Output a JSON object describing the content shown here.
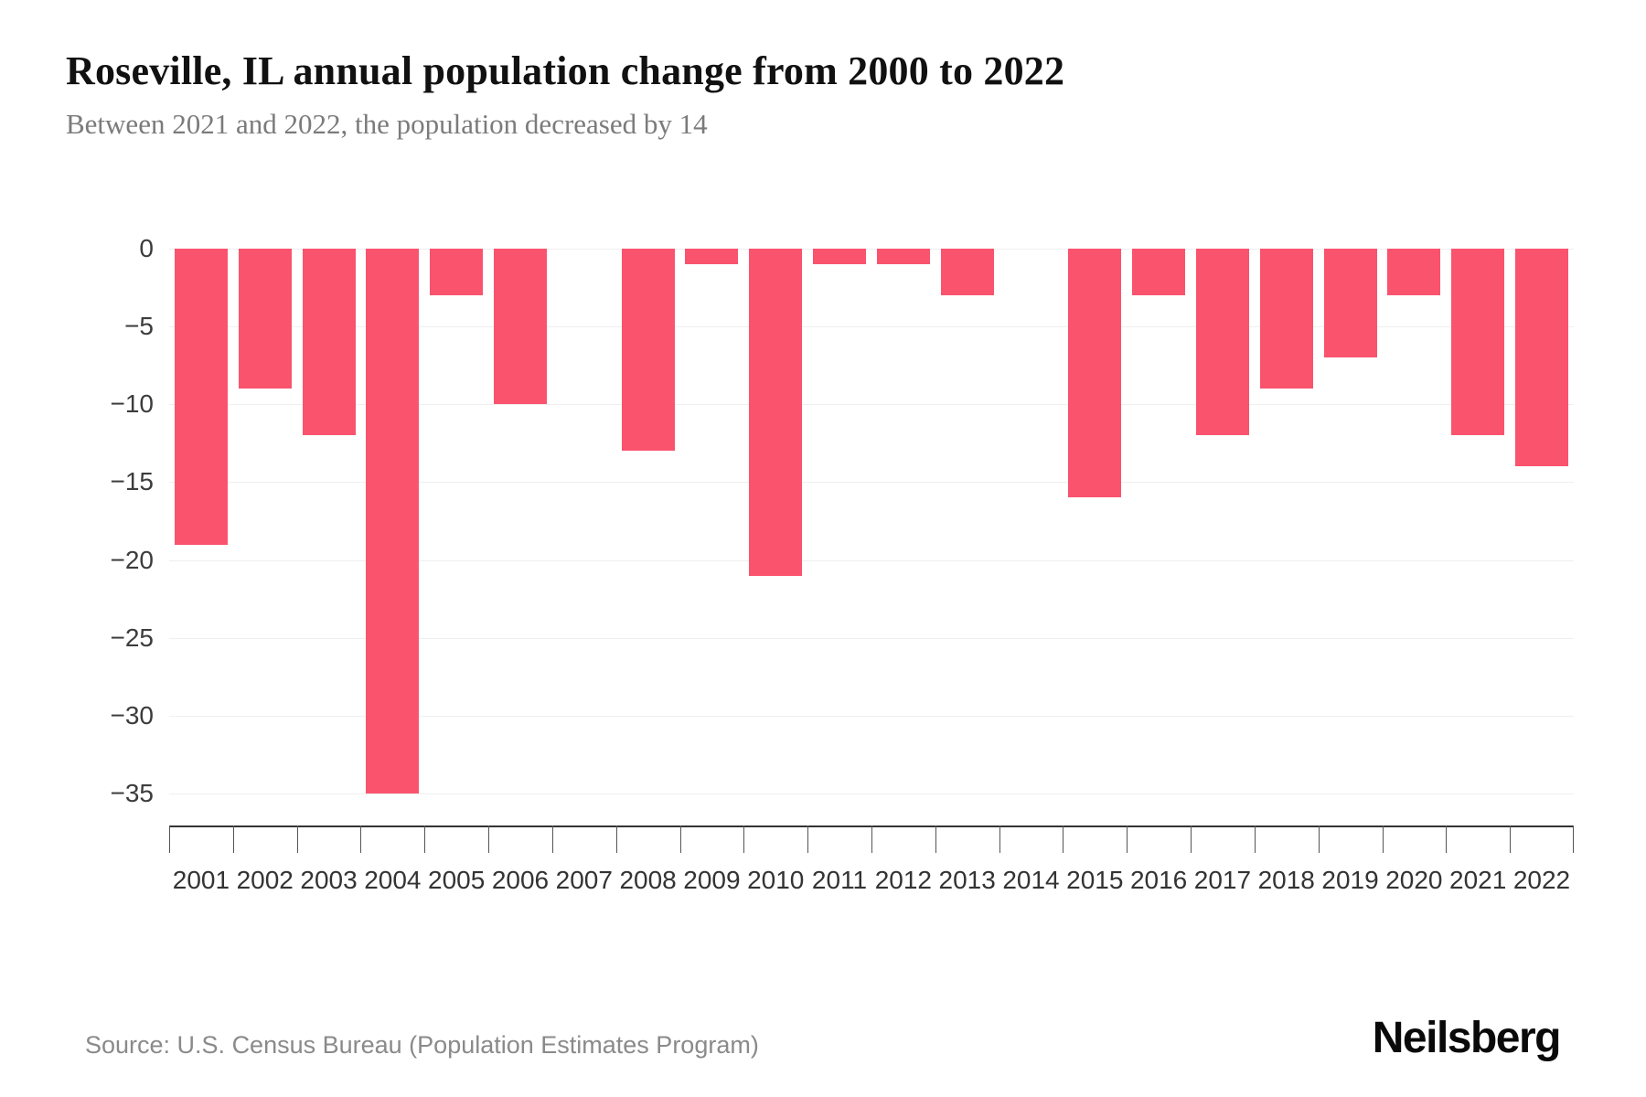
{
  "header": {
    "title": "Roseville, IL annual population change from 2000 to 2022",
    "subtitle": "Between 2021 and 2022, the population decreased by 14"
  },
  "footer": {
    "source": "Source: U.S. Census Bureau (Population Estimates Program)",
    "brand": "Neilsberg"
  },
  "colors": {
    "bar": "#F9536E",
    "gridline": "#efefef",
    "axis_line": "#333333",
    "tick": "#555555",
    "y_label": "#3c3c3c",
    "x_label": "#333333",
    "subtitle": "#7b7b7b",
    "source": "#8a8a8a"
  },
  "chart_data": {
    "type": "bar",
    "title": "Roseville, IL annual population change from 2000 to 2022",
    "subtitle": "Between 2021 and 2022, the population decreased by 14",
    "categories": [
      "2001",
      "2002",
      "2003",
      "2004",
      "2005",
      "2006",
      "2007",
      "2008",
      "2009",
      "2010",
      "2011",
      "2012",
      "2013",
      "2014",
      "2015",
      "2016",
      "2017",
      "2018",
      "2019",
      "2020",
      "2021",
      "2022"
    ],
    "values": [
      -19,
      -9,
      -12,
      -35,
      -3,
      -10,
      0,
      -13,
      -1,
      -21,
      -1,
      -1,
      -3,
      0,
      -16,
      -3,
      -12,
      -9,
      -7,
      -3,
      -12,
      -14
    ],
    "xlabel": "",
    "ylabel": "",
    "ylim": [
      -37,
      0
    ],
    "yticks": [
      0,
      -5,
      -10,
      -15,
      -20,
      -25,
      -30,
      -35
    ],
    "grid": true,
    "legend": false,
    "bar_color": "#F9536E"
  }
}
